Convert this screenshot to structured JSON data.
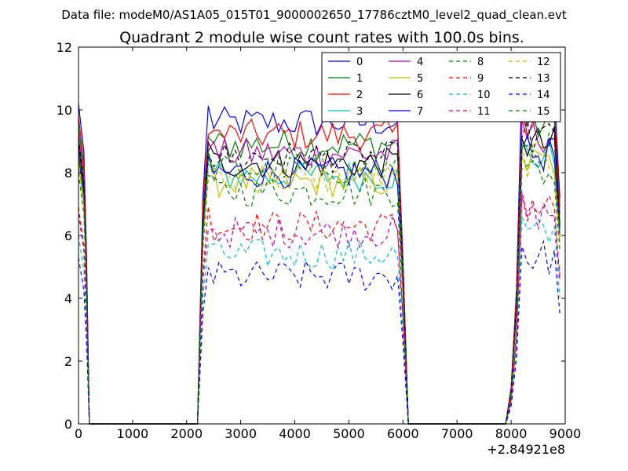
{
  "chart_data": {
    "type": "line",
    "suptitle": "Data file: modeM0/AS1A05_015T01_9000002650_17786cztM0_level2_quad_clean.evt",
    "title": "Quadrant 2 module wise count rates with 100.0s bins.",
    "xlabel": "",
    "ylabel": "",
    "x_offset_label": "+2.84921e8",
    "xlim": [
      0,
      9000
    ],
    "ylim": [
      0,
      12
    ],
    "xticks": [
      0,
      1000,
      2000,
      3000,
      4000,
      5000,
      6000,
      7000,
      8000,
      9000
    ],
    "yticks": [
      0,
      2,
      4,
      6,
      8,
      10,
      12
    ],
    "grid": false,
    "legend_position": "top-right",
    "segments": [
      [
        0,
        200
      ],
      [
        2200,
        6100
      ],
      [
        8000,
        8900
      ]
    ],
    "series": [
      {
        "name": "0",
        "color": "#0000ff",
        "dash": "solid",
        "level": 9.6
      },
      {
        "name": "1",
        "color": "#008000",
        "dash": "solid",
        "level": 8.9
      },
      {
        "name": "2",
        "color": "#ff0000",
        "dash": "solid",
        "level": 9.2
      },
      {
        "name": "3",
        "color": "#00bfbf",
        "dash": "solid",
        "level": 7.9
      },
      {
        "name": "4",
        "color": "#bf00bf",
        "dash": "solid",
        "level": 8.6
      },
      {
        "name": "5",
        "color": "#bfbf00",
        "dash": "solid",
        "level": 7.7
      },
      {
        "name": "6",
        "color": "#000000",
        "dash": "solid",
        "level": 8.3
      },
      {
        "name": "7",
        "color": "#0000ff",
        "dash": "solid",
        "level": 8.0
      },
      {
        "name": "8",
        "color": "#008000",
        "dash": "dashed",
        "level": 7.4
      },
      {
        "name": "9",
        "color": "#ff0000",
        "dash": "dashed",
        "level": 6.3
      },
      {
        "name": "10",
        "color": "#00bfbf",
        "dash": "dashed",
        "level": 5.4
      },
      {
        "name": "11",
        "color": "#bf00bf",
        "dash": "dashed",
        "level": 6.1
      },
      {
        "name": "12",
        "color": "#bfbf00",
        "dash": "dashed",
        "level": 7.8
      },
      {
        "name": "13",
        "color": "#000000",
        "dash": "dashed",
        "level": 8.5
      },
      {
        "name": "14",
        "color": "#0000ff",
        "dash": "dashed",
        "level": 4.7
      },
      {
        "name": "15",
        "color": "#008000",
        "dash": "dashed",
        "level": 8.1
      }
    ]
  }
}
